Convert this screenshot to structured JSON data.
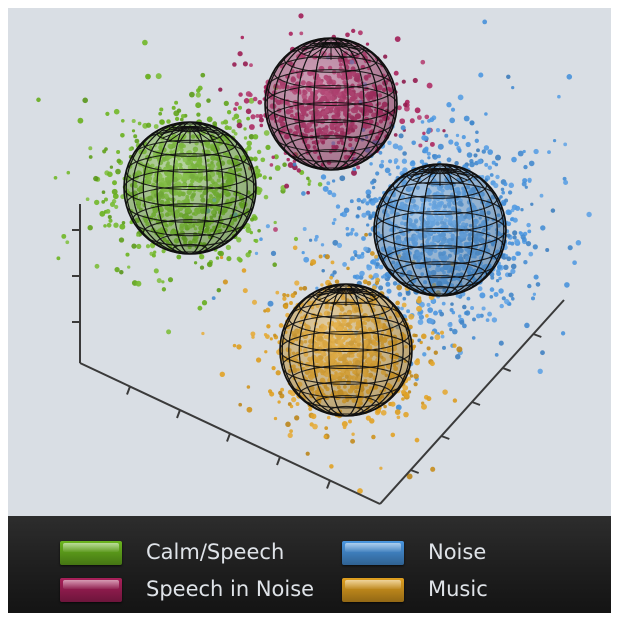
{
  "chart_data": {
    "type": "scatter",
    "projection": "3d",
    "title": "",
    "axes": {
      "xlabel": "",
      "ylabel": "",
      "zlabel": "",
      "tick_labels_shown": false,
      "grid": false
    },
    "background": "#d9dee4",
    "legend": {
      "placement": "bottom"
    },
    "series": [
      {
        "name": "Calm/Speech",
        "color": "#6ab41e",
        "cluster_center_relative": [
          -1.2,
          0.0,
          0.6
        ],
        "spread": 0.8
      },
      {
        "name": "Speech in Noise",
        "color": "#a8205a",
        "cluster_center_relative": [
          0.0,
          -0.8,
          1.1
        ],
        "spread": 0.7
      },
      {
        "name": "Noise",
        "color": "#4a96e0",
        "cluster_center_relative": [
          1.3,
          0.2,
          0.3
        ],
        "spread": 1.0
      },
      {
        "name": "Music",
        "color": "#e0a020",
        "cluster_center_relative": [
          0.1,
          1.3,
          -0.4
        ],
        "spread": 0.75
      }
    ]
  },
  "legend": {
    "items": [
      {
        "label": "Calm/Speech",
        "color": "#6ab41e"
      },
      {
        "label": "Speech in Noise",
        "color": "#a8205a"
      },
      {
        "label": "Noise",
        "color": "#4a96e0"
      },
      {
        "label": "Music",
        "color": "#e0a020"
      }
    ]
  },
  "colors": {
    "legend_bar": "#1e1e1e",
    "legend_text": "#dfe3e8",
    "axis": "#3a3a3a",
    "wireframe": "#111111"
  }
}
